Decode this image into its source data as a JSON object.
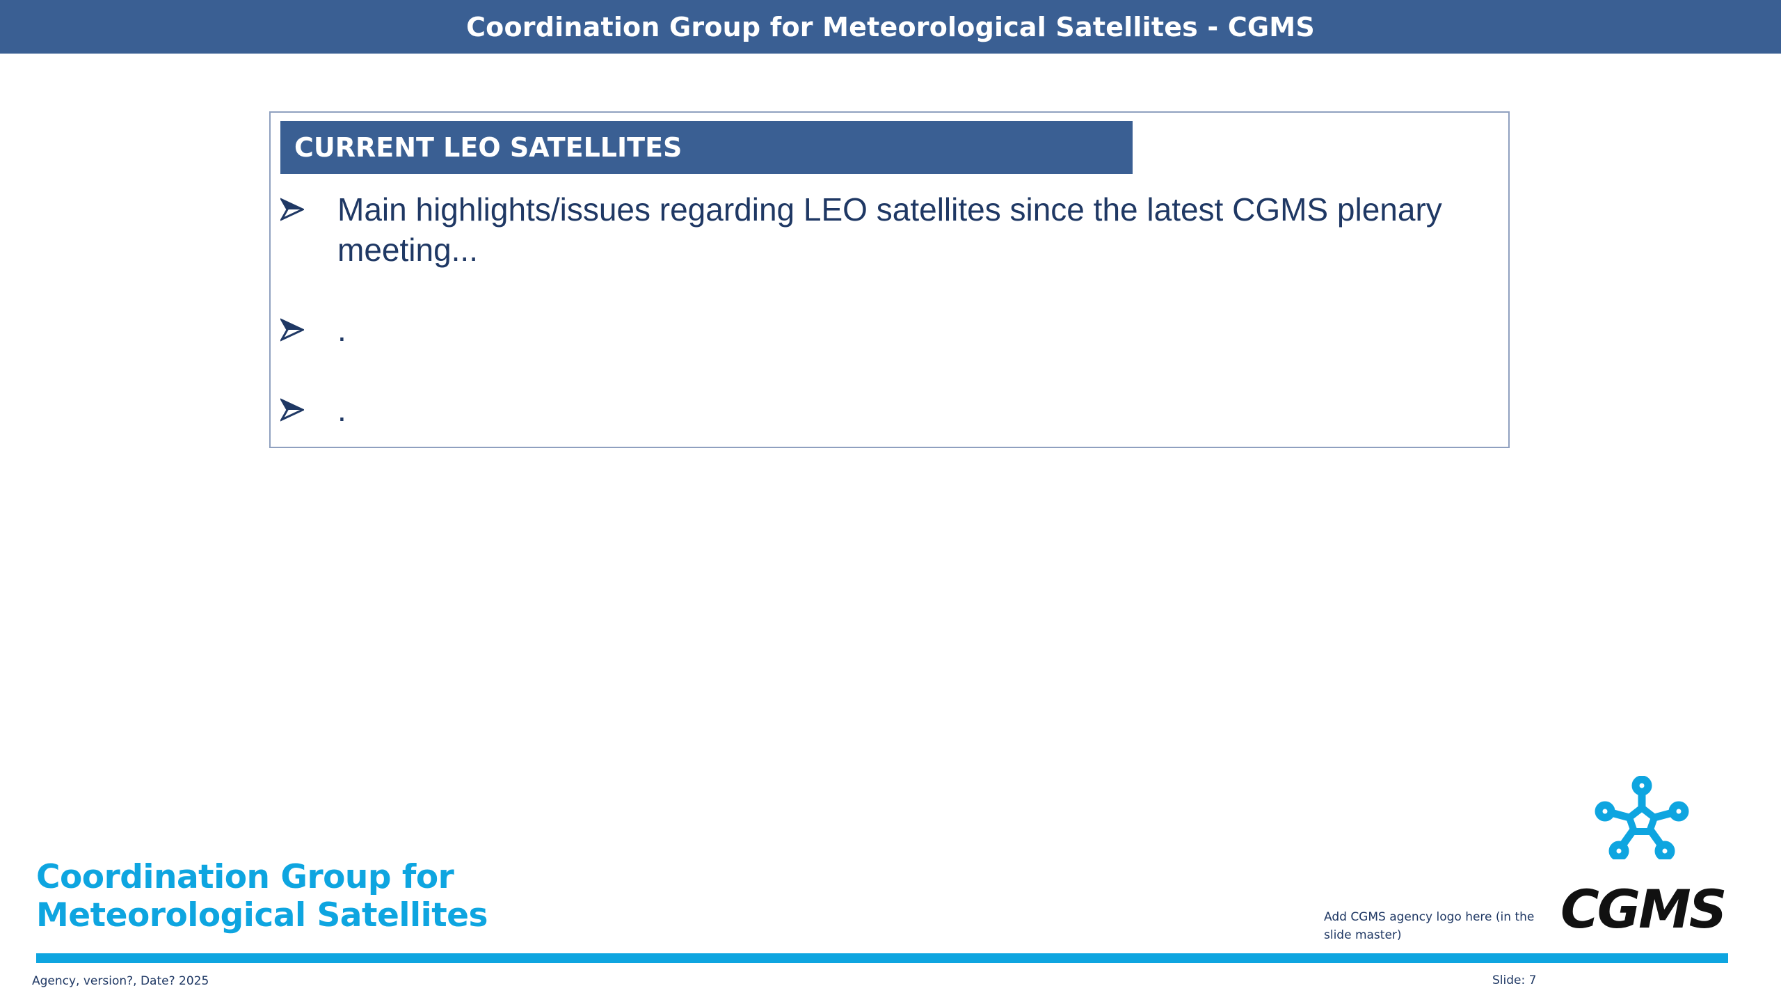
{
  "header": {
    "title": "Coordination Group for Meteorological Satellites - CGMS"
  },
  "section": {
    "title": "CURRENT LEO SATELLITES",
    "bullets": [
      "Main highlights/issues regarding LEO satellites since the latest CGMS plenary meeting...",
      ".",
      "."
    ],
    "bullet_icon": "arrow-bullet-icon"
  },
  "footer": {
    "brand_line1": "Coordination Group for",
    "brand_line2": "Meteorological Satellites",
    "logo_note": "Add CGMS agency logo here (in the slide master)",
    "logo_word": "CGMS",
    "left_text": "Agency, version?,  Date? 2025",
    "slide_label": "Slide: 7"
  },
  "colors": {
    "banner": "#3a5f93",
    "accent": "#0ea5e0",
    "body_text": "#1f3864"
  }
}
